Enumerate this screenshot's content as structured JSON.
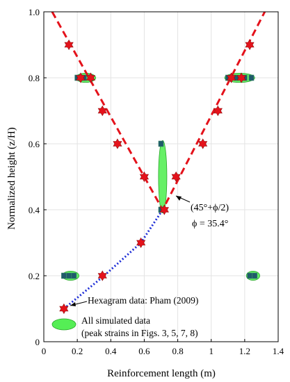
{
  "chart_data": {
    "type": "scatter",
    "xlabel": "Reinforcement length (m)",
    "ylabel": "Normalized height (z/H)",
    "xlim": [
      0,
      1.4
    ],
    "ylim": [
      0,
      1.0
    ],
    "xticks": [
      "0",
      "0.2",
      "0.4",
      "0.6",
      "0.8",
      "1",
      "1.2",
      "1.4"
    ],
    "yticks": [
      "0",
      "0.2",
      "0.4",
      "0.6",
      "0.8",
      "1.0"
    ],
    "grid": true,
    "colors": {
      "hexagram": "#e4121b",
      "red_line": "#e4121b",
      "blue_line": "#1b2bd6",
      "ellipse_fill": "#55ee55",
      "ellipse_edge": "#2aa52a",
      "dark_marker": "#1f5a6a"
    },
    "hexagram_data": [
      {
        "x": 0.12,
        "y": 0.1
      },
      {
        "x": 0.35,
        "y": 0.2
      },
      {
        "x": 0.58,
        "y": 0.3
      },
      {
        "x": 0.72,
        "y": 0.4
      },
      {
        "x": 0.6,
        "y": 0.5
      },
      {
        "x": 0.79,
        "y": 0.5
      },
      {
        "x": 0.95,
        "y": 0.6
      },
      {
        "x": 0.44,
        "y": 0.6
      },
      {
        "x": 0.35,
        "y": 0.7
      },
      {
        "x": 1.04,
        "y": 0.7
      },
      {
        "x": 0.22,
        "y": 0.8
      },
      {
        "x": 0.28,
        "y": 0.8
      },
      {
        "x": 1.12,
        "y": 0.8
      },
      {
        "x": 1.18,
        "y": 0.8
      },
      {
        "x": 0.15,
        "y": 0.9
      },
      {
        "x": 1.23,
        "y": 0.9
      }
    ],
    "red_dashed_line": [
      {
        "x": 0.05,
        "y": 1.0
      },
      {
        "x": 0.71,
        "y": 0.4
      },
      {
        "x": 1.32,
        "y": 1.0
      }
    ],
    "blue_dotted_line": [
      {
        "x": 0.12,
        "y": 0.1
      },
      {
        "x": 0.36,
        "y": 0.2
      },
      {
        "x": 0.58,
        "y": 0.3
      },
      {
        "x": 0.71,
        "y": 0.4
      }
    ],
    "simulated_ellipses": [
      {
        "cx": 0.16,
        "cy": 0.2,
        "rx": 0.05,
        "ry": 0.014
      },
      {
        "cx": 1.25,
        "cy": 0.2,
        "rx": 0.04,
        "ry": 0.014
      },
      {
        "cx": 0.25,
        "cy": 0.8,
        "rx": 0.06,
        "ry": 0.014
      },
      {
        "cx": 1.17,
        "cy": 0.8,
        "rx": 0.09,
        "ry": 0.014
      },
      {
        "cx": 0.71,
        "cy": 0.5,
        "rx": 0.025,
        "ry": 0.11
      }
    ],
    "simulated_dots": [
      {
        "x": 0.12,
        "y": 0.2
      },
      {
        "x": 0.15,
        "y": 0.2
      },
      {
        "x": 0.18,
        "y": 0.2
      },
      {
        "x": 1.23,
        "y": 0.2
      },
      {
        "x": 1.26,
        "y": 0.2
      },
      {
        "x": 0.2,
        "y": 0.8
      },
      {
        "x": 0.24,
        "y": 0.8
      },
      {
        "x": 0.28,
        "y": 0.8
      },
      {
        "x": 1.1,
        "y": 0.8
      },
      {
        "x": 1.15,
        "y": 0.8
      },
      {
        "x": 1.2,
        "y": 0.8
      },
      {
        "x": 1.24,
        "y": 0.8
      },
      {
        "x": 0.7,
        "y": 0.6
      },
      {
        "x": 0.7,
        "y": 0.4
      }
    ],
    "annotations": {
      "angle_line1": "(45°+ϕ/2)",
      "angle_line2": "ϕ = 35.4°",
      "hexagram_label": "Hexagram data: Pham (2009)"
    },
    "legend": {
      "line1": "All simulated data",
      "line2": "(peak strains in Figs. 3, 5, 7, 8)"
    }
  }
}
